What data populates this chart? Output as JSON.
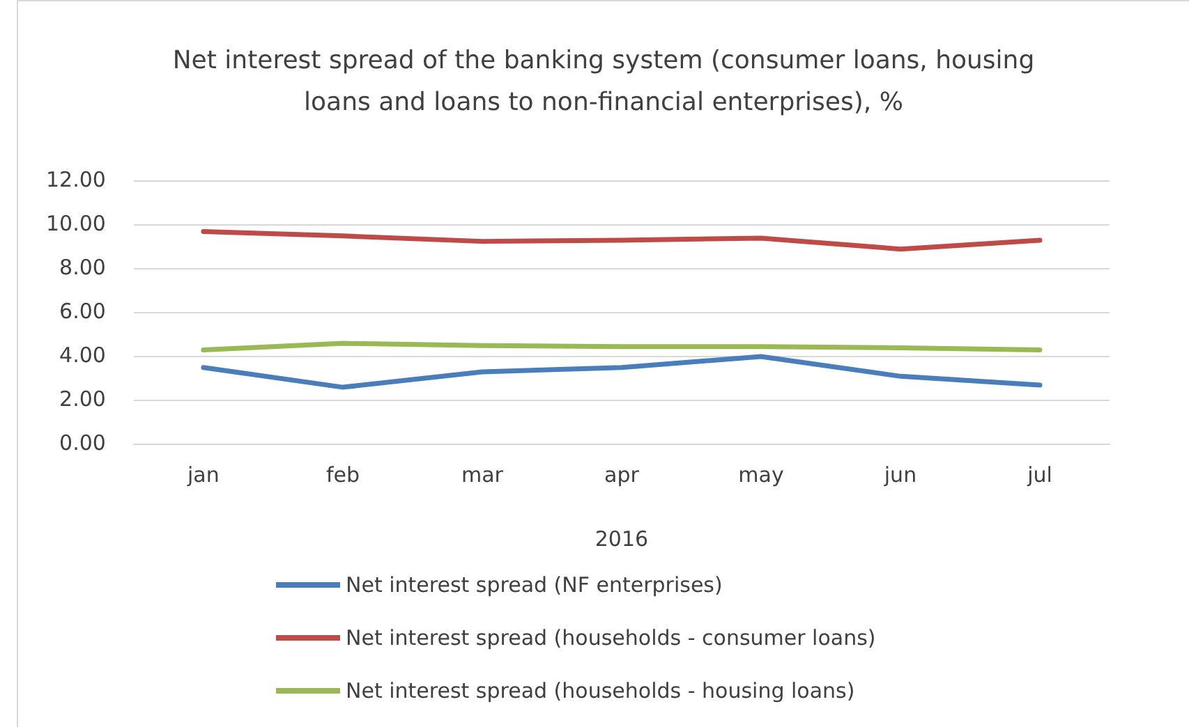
{
  "chart_data": {
    "type": "line",
    "title": "Net interest spread of the banking system (consumer loans, housing loans and loans to non-financial enterprises), %",
    "xlabel": "2016",
    "categories": [
      "jan",
      "feb",
      "mar",
      "apr",
      "may",
      "jun",
      "jul"
    ],
    "series": [
      {
        "name": "Net interest spread (NF enterprises)",
        "color": "#4a7ebb",
        "values": [
          3.5,
          2.6,
          3.3,
          3.5,
          4.0,
          3.1,
          2.7
        ]
      },
      {
        "name": "Net interest spread (households - consumer loans)",
        "color": "#be4b48",
        "values": [
          9.7,
          9.5,
          9.25,
          9.3,
          9.4,
          8.9,
          9.3
        ]
      },
      {
        "name": "Net interest spread (households - housing loans)",
        "color": "#98b954",
        "values": [
          4.3,
          4.6,
          4.5,
          4.45,
          4.45,
          4.4,
          4.3
        ]
      }
    ],
    "ylim": [
      0,
      12
    ],
    "yticks": [
      {
        "value": 0,
        "label": "0.00"
      },
      {
        "value": 2,
        "label": "2.00"
      },
      {
        "value": 4,
        "label": "4.00"
      },
      {
        "value": 6,
        "label": "6.00"
      },
      {
        "value": 8,
        "label": "8.00"
      },
      {
        "value": 10,
        "label": "10.00"
      },
      {
        "value": 12,
        "label": "12.00"
      }
    ],
    "grid": "y",
    "legend": "bottom",
    "marker": "none",
    "line_style": "solid"
  }
}
